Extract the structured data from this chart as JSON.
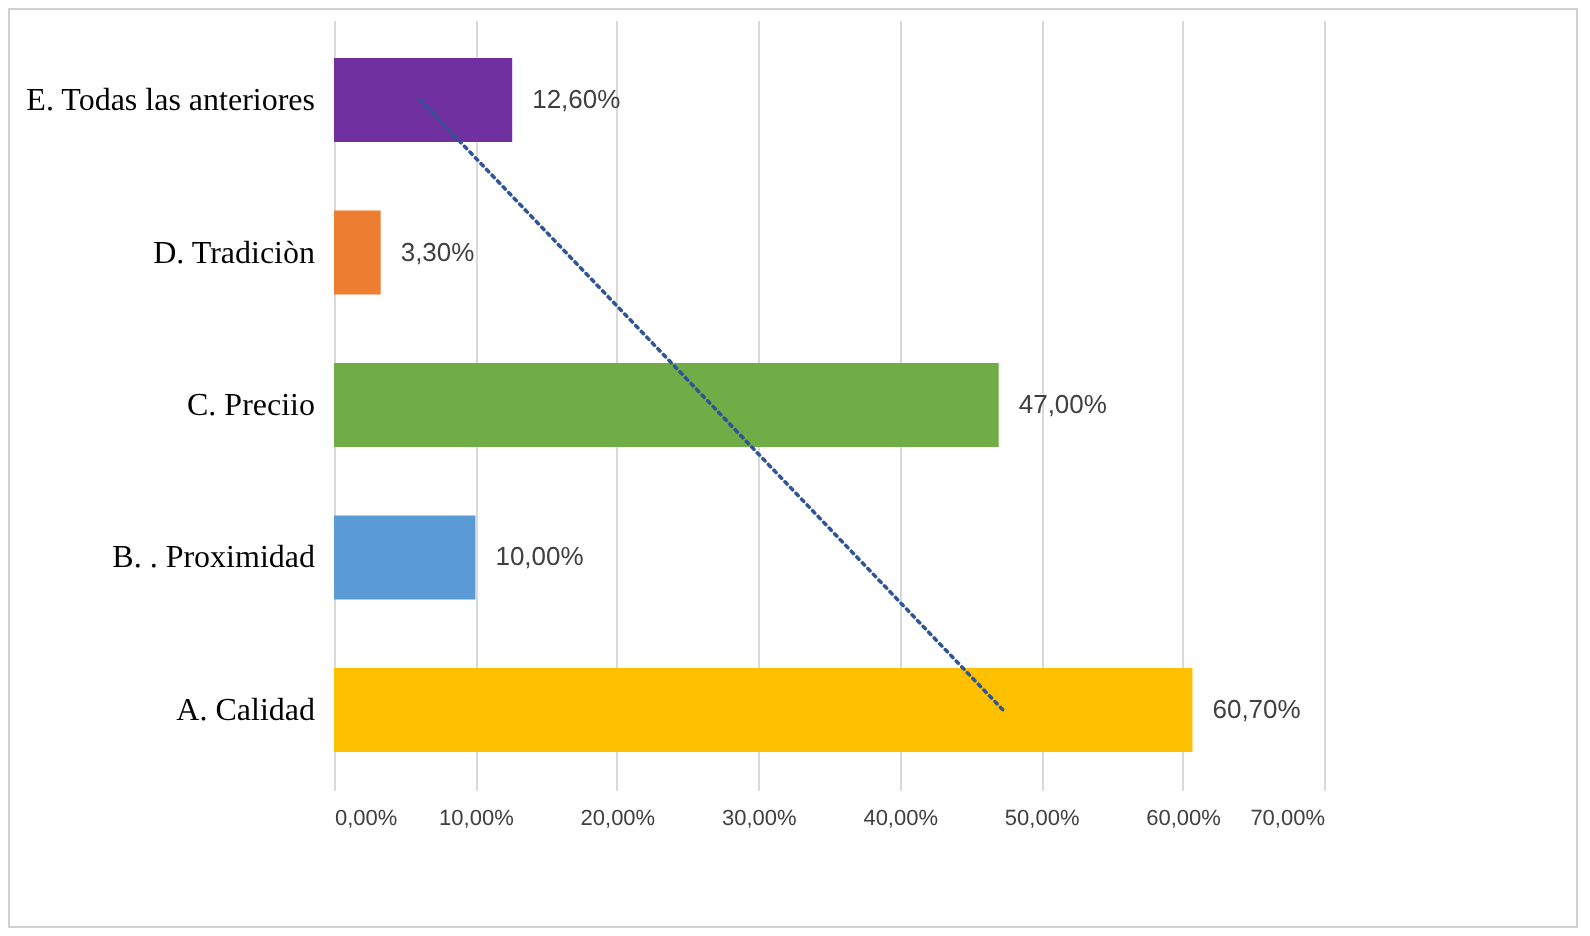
{
  "chart_data": {
    "type": "bar",
    "orientation": "horizontal",
    "categories": [
      "E. Todas las anteriores",
      "D. Tradiciòn",
      "C. Preciio",
      "B. . Proximidad",
      "A. Calidad"
    ],
    "series": [
      {
        "colors": [
          "#7030a0",
          "#ed7d31",
          "#70ad47",
          "#5b9bd5",
          "#ffc000"
        ],
        "values": [
          12.6,
          3.3,
          47.0,
          10.0,
          60.7
        ],
        "value_labels": [
          "12,60%",
          "3,30%",
          "47,00%",
          "10,00%",
          "60,70%"
        ]
      },
      {
        "type": "line",
        "color": "#2f5597",
        "line_style": "dotted",
        "values": [
          6.1,
          16.4,
          26.7,
          37.0,
          47.3
        ]
      }
    ],
    "xlim": [
      0,
      70
    ],
    "xticks": [
      {
        "value": 0,
        "label": "0,00%"
      },
      {
        "value": 10,
        "label": "10,00%"
      },
      {
        "value": 20,
        "label": "20,00%"
      },
      {
        "value": 30,
        "label": "30,00%"
      },
      {
        "value": 40,
        "label": "40,00%"
      },
      {
        "value": 50,
        "label": "50,00%"
      },
      {
        "value": 60,
        "label": "60,00%"
      },
      {
        "value": 70,
        "label": "70,00%"
      }
    ],
    "grid": "x"
  }
}
